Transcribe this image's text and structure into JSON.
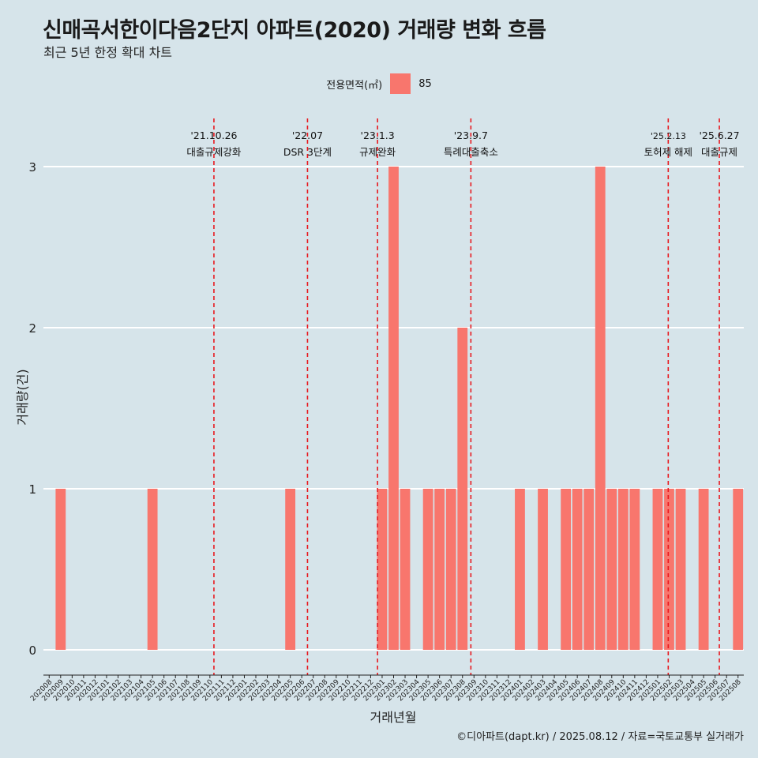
{
  "title": "신매곡서한이다음2단지 아파트(2020) 거래량 변화 흐름",
  "subtitle": "최근 5년 한정 확대 차트",
  "caption": "©디아파트(dapt.kr) / 2025.08.12 / 자료=국토교통부 실거래가",
  "legend": {
    "title": "전용면적(㎡)",
    "items": [
      {
        "label": "85",
        "color": "#f8766d"
      }
    ]
  },
  "colors": {
    "bar": "#f8766d",
    "background": "#d6e4ea",
    "grid": "#ffffff",
    "event_line": "#e8191f"
  },
  "chart_data": {
    "type": "bar",
    "xlabel": "거래년월",
    "ylabel": "거래량(건)",
    "ylim": [
      0,
      3
    ],
    "yticks": [
      0,
      1,
      2,
      3
    ],
    "grid": true,
    "legend_position": "top",
    "categories": [
      "202008",
      "202009",
      "202010",
      "202011",
      "202012",
      "202101",
      "202102",
      "202103",
      "202104",
      "202105",
      "202106",
      "202107",
      "202108",
      "202109",
      "202110",
      "202111",
      "202112",
      "202201",
      "202202",
      "202203",
      "202204",
      "202205",
      "202206",
      "202207",
      "202208",
      "202209",
      "202210",
      "202211",
      "202212",
      "202301",
      "202302",
      "202303",
      "202304",
      "202305",
      "202306",
      "202307",
      "202308",
      "202309",
      "202310",
      "202311",
      "202312",
      "202401",
      "202402",
      "202403",
      "202404",
      "202405",
      "202406",
      "202407",
      "202408",
      "202409",
      "202410",
      "202411",
      "202412",
      "202501",
      "202502",
      "202503",
      "202504",
      "202505",
      "202506",
      "202507",
      "202508"
    ],
    "series": [
      {
        "name": "85",
        "values": [
          0,
          1,
          0,
          0,
          0,
          0,
          0,
          0,
          0,
          1,
          0,
          0,
          0,
          0,
          0,
          0,
          0,
          0,
          0,
          0,
          0,
          1,
          0,
          0,
          0,
          0,
          0,
          0,
          0,
          1,
          3,
          1,
          0,
          1,
          1,
          1,
          2,
          0,
          0,
          0,
          0,
          1,
          0,
          1,
          0,
          1,
          1,
          1,
          3,
          1,
          1,
          1,
          0,
          1,
          1,
          1,
          0,
          1,
          0,
          0,
          1
        ]
      }
    ],
    "annotations": [
      {
        "date": "'21.10.26",
        "label": "대출규제강화",
        "x": "202110",
        "offset": 0.85
      },
      {
        "date": "'22.07",
        "label": "DSR 3단계",
        "x": "202207",
        "offset": 0.0
      },
      {
        "date": "'23.1.3",
        "label": "규제완화",
        "x": "202301",
        "offset": 0.1
      },
      {
        "date": "'23.9.7",
        "label": "특례대출축소",
        "x": "202309",
        "offset": 0.23
      },
      {
        "date": "'25.2.13",
        "label": "토허제 해제",
        "x": "202502",
        "offset": 0.42
      },
      {
        "date": "'25.6.27",
        "label": "대출규제",
        "x": "202506",
        "offset": 0.87
      }
    ]
  }
}
